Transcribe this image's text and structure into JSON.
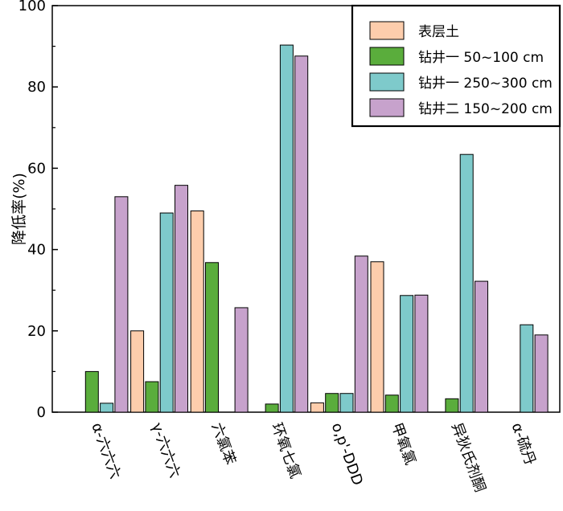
{
  "chart_data": {
    "type": "bar",
    "title": "",
    "xlabel": "",
    "ylabel": "降低率(%)",
    "ylim": [
      0,
      100
    ],
    "yticks": [
      0,
      20,
      40,
      60,
      80,
      100
    ],
    "grid": false,
    "legend_position": "top-right",
    "categories": [
      "α-六六六",
      "γ-六六六",
      "六氯苯",
      "环氧七氯",
      "o,p'-DDD",
      "甲氧氯",
      "异狄氏剂酮",
      "α-硫丹"
    ],
    "series": [
      {
        "name": "表层土",
        "color": "#fdcdac",
        "values": [
          0,
          20,
          49.5,
          0,
          2.3,
          37,
          0,
          0
        ]
      },
      {
        "name": "钻井一 50~100 cm",
        "color": "#5aad3c",
        "values": [
          10,
          7.5,
          36.8,
          2,
          4.6,
          4.2,
          3.3,
          0
        ]
      },
      {
        "name": "钻井一 250~300 cm",
        "color": "#7ecacb",
        "values": [
          2.2,
          49,
          0,
          90.3,
          4.6,
          28.7,
          63.4,
          21.5
        ]
      },
      {
        "name": "钻井二 150~200 cm",
        "color": "#c7a2cc",
        "values": [
          53,
          55.8,
          25.7,
          87.6,
          38.4,
          28.8,
          32.2,
          19
        ]
      }
    ]
  }
}
